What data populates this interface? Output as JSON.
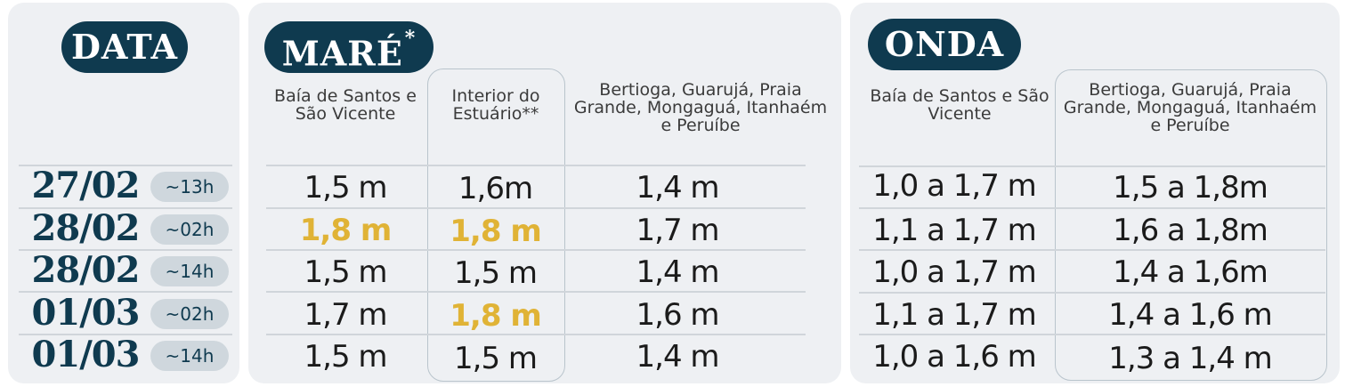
{
  "data_section": {
    "title": "DATA",
    "rows": [
      {
        "date": "27/02",
        "time": "~13h"
      },
      {
        "date": "28/02",
        "time": "~02h"
      },
      {
        "date": "28/02",
        "time": "~14h"
      },
      {
        "date": "01/03",
        "time": "~02h"
      },
      {
        "date": "01/03",
        "time": "~14h"
      }
    ]
  },
  "mare_section": {
    "title": "MARÉ",
    "title_mark": "*",
    "columns": [
      "Baía de Santos e São Vicente",
      "Interior do Estuário**",
      "Bertioga, Guarujá, Praia Grande, Mongaguá, Itanhaém e Peruíbe"
    ],
    "rows": [
      [
        "1,5 m",
        "1,6m",
        "1,4 m"
      ],
      [
        "1,8 m",
        "1,8 m",
        "1,7 m"
      ],
      [
        "1,5 m",
        "1,5 m",
        "1,4 m"
      ],
      [
        "1,7 m",
        "1,8 m",
        "1,6 m"
      ],
      [
        "1,5 m",
        "1,5 m",
        "1,4 m"
      ]
    ],
    "highlights": [
      [
        1,
        0
      ],
      [
        1,
        1
      ],
      [
        3,
        1
      ]
    ]
  },
  "onda_section": {
    "title": "ONDA",
    "columns": [
      "Baía de Santos e São Vicente",
      "Bertioga, Guarujá, Praia Grande, Mongaguá, Itanhaém e Peruíbe"
    ],
    "rows": [
      [
        "1,0 a 1,7 m",
        "1,5 a 1,8m"
      ],
      [
        "1,1 a 1,7 m",
        "1,6 a 1,8m"
      ],
      [
        "1,0 a 1,7 m",
        "1,4 a 1,6m"
      ],
      [
        "1,1 a 1,7 m",
        "1,4 a 1,6 m"
      ],
      [
        "1,0 a 1,6 m",
        "1,3 a 1,4 m"
      ]
    ]
  },
  "colors": {
    "panel_bg": "#eef0f3",
    "pill_bg": "#0f3a4f",
    "highlight": "#e0b336"
  }
}
